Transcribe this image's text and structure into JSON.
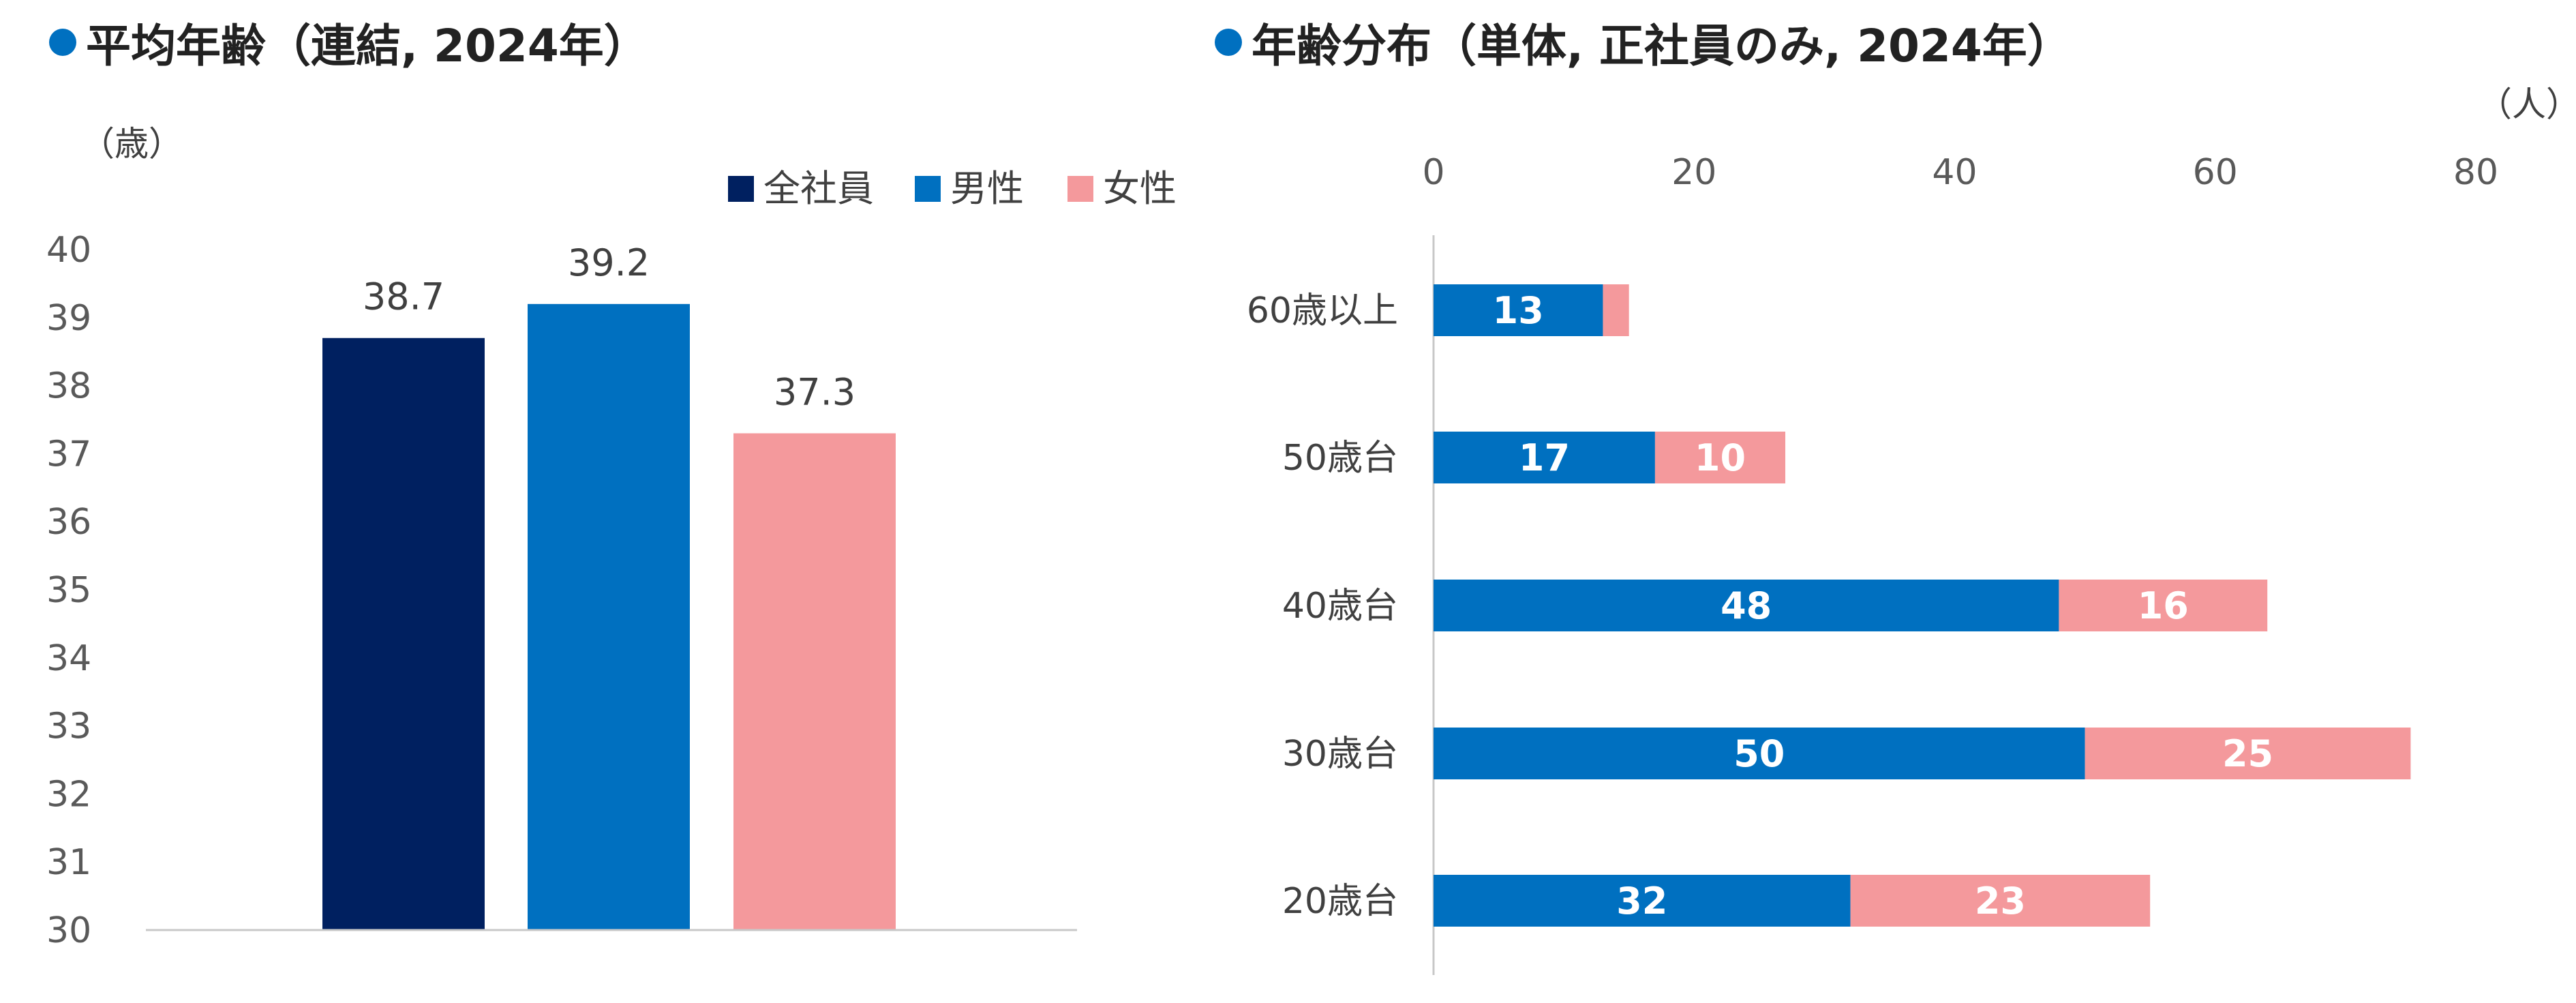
{
  "colors": {
    "dot": "#0070C0",
    "all": "#002060",
    "male": "#0070C0",
    "female": "#F4999C",
    "axis": "#C8C8C8",
    "tick_text": "#595959",
    "label_text": "#404040",
    "seg_label": "#FFFFFF"
  },
  "chart_data": [
    {
      "type": "bar",
      "title": "平均年齢（連結, 2024年）",
      "ylabel": "（歳）",
      "ylim": [
        30,
        40
      ],
      "ytick_step": 1,
      "categories": [
        "全社員",
        "男性",
        "女性"
      ],
      "values": [
        38.7,
        39.2,
        37.3
      ],
      "value_labels": [
        "38.7",
        "39.2",
        "37.3"
      ],
      "legend": [
        "全社員",
        "男性",
        "女性"
      ],
      "legend_position": "top-right",
      "grid": false
    },
    {
      "type": "bar",
      "orientation": "horizontal",
      "stacked": true,
      "title": "年齢分布（単体, 正社員のみ, 2024年）",
      "xlabel": "（人）",
      "xlim": [
        0,
        80
      ],
      "xticks": [
        0,
        20,
        40,
        60,
        80
      ],
      "xaxis_position": "top",
      "categories": [
        "60歳以上",
        "50歳台",
        "40歳台",
        "30歳台",
        "20歳台"
      ],
      "series": [
        {
          "values": [
            13,
            17,
            48,
            50,
            32
          ],
          "labels": [
            "13",
            "17",
            "48",
            "50",
            "32"
          ]
        },
        {
          "values": [
            2,
            10,
            16,
            25,
            23
          ],
          "labels": [
            "",
            "10",
            "16",
            "25",
            "23"
          ]
        }
      ],
      "grid": false
    }
  ]
}
